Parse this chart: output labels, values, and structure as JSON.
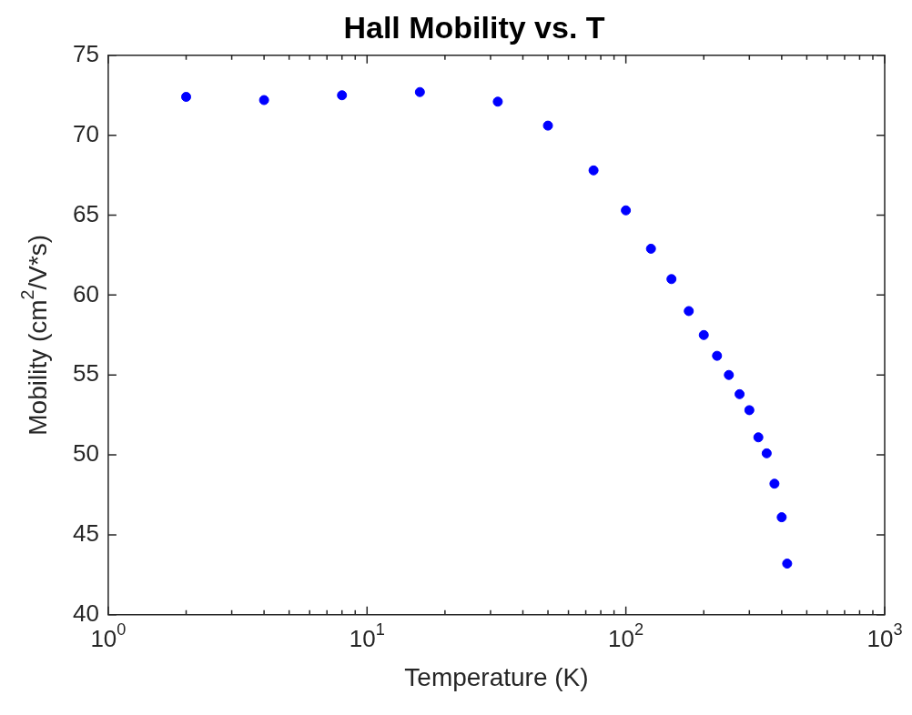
{
  "chart_data": {
    "type": "scatter",
    "title": "Hall Mobility vs. T",
    "xlabel": "Temperature (K)",
    "ylabel": "Mobility (cm$^{2}$/V*s)",
    "x": [
      2,
      4,
      8,
      16,
      32,
      50,
      75,
      100,
      125,
      150,
      175,
      200,
      225,
      250,
      275,
      300,
      325,
      350,
      375,
      400,
      420
    ],
    "series": [
      {
        "color": "#0000ff",
        "values": [
          72.4,
          72.2,
          72.5,
          72.7,
          72.1,
          70.6,
          67.8,
          65.3,
          62.9,
          61.0,
          59.0,
          57.5,
          56.2,
          55.0,
          53.8,
          52.8,
          51.1,
          50.1,
          48.2,
          46.1,
          43.2
        ]
      }
    ],
    "log": "x",
    "marker": "circle",
    "grid": false,
    "legend": false,
    "xlim": [
      1,
      1000
    ],
    "xticks": [
      {
        "value": 1,
        "label": "10$^{0}$"
      },
      {
        "value": 2,
        "label": null
      },
      {
        "value": 3,
        "label": null
      },
      {
        "value": 4,
        "label": null
      },
      {
        "value": 5,
        "label": null
      },
      {
        "value": 6,
        "label": null
      },
      {
        "value": 7,
        "label": null
      },
      {
        "value": 8,
        "label": null
      },
      {
        "value": 9,
        "label": null
      },
      {
        "value": 10,
        "label": "10$^{1}$"
      },
      {
        "value": 20,
        "label": null
      },
      {
        "value": 30,
        "label": null
      },
      {
        "value": 40,
        "label": null
      },
      {
        "value": 50,
        "label": null
      },
      {
        "value": 60,
        "label": null
      },
      {
        "value": 70,
        "label": null
      },
      {
        "value": 80,
        "label": null
      },
      {
        "value": 90,
        "label": null
      },
      {
        "value": 100,
        "label": "10$^{2}$"
      },
      {
        "value": 200,
        "label": null
      },
      {
        "value": 300,
        "label": null
      },
      {
        "value": 400,
        "label": null
      },
      {
        "value": 500,
        "label": null
      },
      {
        "value": 600,
        "label": null
      },
      {
        "value": 700,
        "label": null
      },
      {
        "value": 800,
        "label": null
      },
      {
        "value": 900,
        "label": null
      },
      {
        "value": 1000,
        "label": "10$^{3}$"
      }
    ],
    "ylim": [
      40,
      75
    ],
    "yticks": [
      40,
      45,
      50,
      55,
      60,
      65,
      70,
      75
    ]
  }
}
